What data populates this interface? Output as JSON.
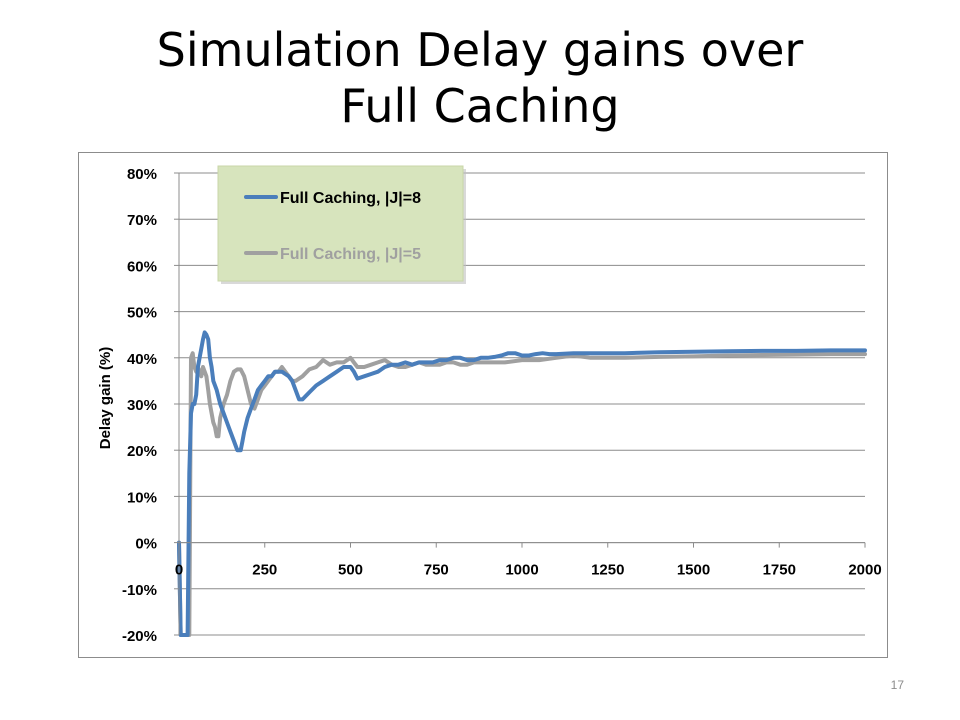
{
  "slide": {
    "title_line1": "Simulation Delay gains over",
    "title_line2": "Full Caching",
    "page_number": "17"
  },
  "chart_data": {
    "type": "line",
    "title": "",
    "xlabel": "",
    "ylabel": "Delay gain (%)",
    "xlim": [
      0,
      2000
    ],
    "ylim": [
      -20,
      80
    ],
    "x_ticks": [
      0,
      250,
      500,
      750,
      1000,
      1250,
      1500,
      1750,
      2000
    ],
    "y_ticks": [
      -20,
      -10,
      0,
      10,
      20,
      30,
      40,
      50,
      60,
      70,
      80
    ],
    "y_tick_labels": [
      "-20%",
      "-10%",
      "0%",
      "10%",
      "20%",
      "30%",
      "40%",
      "50%",
      "60%",
      "70%",
      "80%"
    ],
    "grid": "horizontal",
    "legend_position": "top-left",
    "legend_background": "#d7e4bd",
    "series": [
      {
        "name": "Full Caching,  |J|=8",
        "color": "#4a7ebb",
        "x": [
          0,
          5,
          10,
          15,
          20,
          25,
          30,
          35,
          40,
          45,
          50,
          55,
          60,
          65,
          70,
          75,
          80,
          85,
          90,
          95,
          100,
          110,
          120,
          130,
          140,
          150,
          160,
          170,
          180,
          185,
          190,
          200,
          210,
          220,
          230,
          240,
          250,
          260,
          270,
          280,
          290,
          300,
          310,
          320,
          330,
          340,
          350,
          360,
          380,
          400,
          420,
          440,
          460,
          480,
          500,
          510,
          520,
          540,
          560,
          580,
          600,
          620,
          640,
          660,
          680,
          700,
          720,
          740,
          760,
          780,
          800,
          820,
          840,
          860,
          880,
          900,
          920,
          940,
          960,
          980,
          1000,
          1020,
          1040,
          1060,
          1080,
          1100,
          1150,
          1200,
          1250,
          1300,
          1400,
          1500,
          1600,
          1700,
          1800,
          1900,
          2000
        ],
        "y": [
          0,
          -20,
          -20,
          -20,
          -20,
          -20,
          15,
          28,
          30,
          30,
          32,
          38,
          40,
          42,
          44,
          45.5,
          45,
          44,
          40,
          38,
          35,
          33,
          30,
          28,
          26,
          24,
          22,
          20,
          20,
          22,
          24,
          27,
          29,
          31,
          33,
          34,
          35,
          36,
          36,
          37,
          37,
          37,
          36.5,
          36,
          35,
          33,
          31,
          31,
          32.5,
          34,
          35,
          36,
          37,
          38,
          38,
          37,
          35.5,
          36,
          36.5,
          37,
          38,
          38.5,
          38.5,
          39,
          38.5,
          39,
          39,
          39,
          39.5,
          39.5,
          40,
          40,
          39.5,
          39.5,
          40,
          40,
          40.2,
          40.5,
          41,
          41,
          40.5,
          40.5,
          40.8,
          41,
          40.8,
          40.8,
          41,
          41,
          41,
          41,
          41.2,
          41.3,
          41.4,
          41.5,
          41.5,
          41.6,
          41.6
        ]
      },
      {
        "name": "Full Caching,  |J|=5",
        "color": "#a0a0a0",
        "x": [
          0,
          5,
          10,
          15,
          20,
          25,
          30,
          35,
          40,
          45,
          50,
          55,
          60,
          65,
          70,
          75,
          80,
          85,
          90,
          95,
          100,
          105,
          110,
          115,
          120,
          130,
          140,
          150,
          160,
          170,
          180,
          190,
          200,
          210,
          220,
          230,
          240,
          250,
          260,
          270,
          280,
          290,
          300,
          310,
          320,
          330,
          340,
          360,
          380,
          400,
          420,
          440,
          460,
          480,
          500,
          510,
          520,
          540,
          560,
          580,
          600,
          620,
          640,
          660,
          680,
          700,
          720,
          740,
          760,
          780,
          800,
          820,
          840,
          860,
          880,
          900,
          950,
          1000,
          1050,
          1100,
          1150,
          1200,
          1250,
          1300,
          1400,
          1500,
          1600,
          1700,
          1800,
          1900,
          2000
        ],
        "y": [
          0,
          -20,
          -20,
          -20,
          -20,
          -20,
          -20,
          40,
          41,
          38,
          37,
          38,
          37,
          36,
          38,
          37,
          36,
          33,
          30,
          28,
          26,
          25,
          23,
          23,
          27,
          30,
          32,
          35,
          37,
          37.5,
          37.5,
          36,
          33,
          30,
          29,
          31,
          33,
          34,
          35,
          36,
          37,
          37,
          38,
          37,
          36,
          35,
          35,
          36,
          37.5,
          38,
          39.5,
          38.5,
          39,
          39,
          40,
          39,
          38,
          38,
          38.5,
          39,
          39.5,
          38.5,
          38,
          38,
          38.5,
          39,
          38.5,
          38.5,
          38.5,
          39,
          39,
          38.5,
          38.5,
          39,
          39,
          39,
          39,
          39.5,
          39.5,
          40,
          40.5,
          40,
          40,
          40,
          40.2,
          40.3,
          40.5,
          40.6,
          40.7,
          40.8,
          40.8
        ]
      }
    ]
  }
}
